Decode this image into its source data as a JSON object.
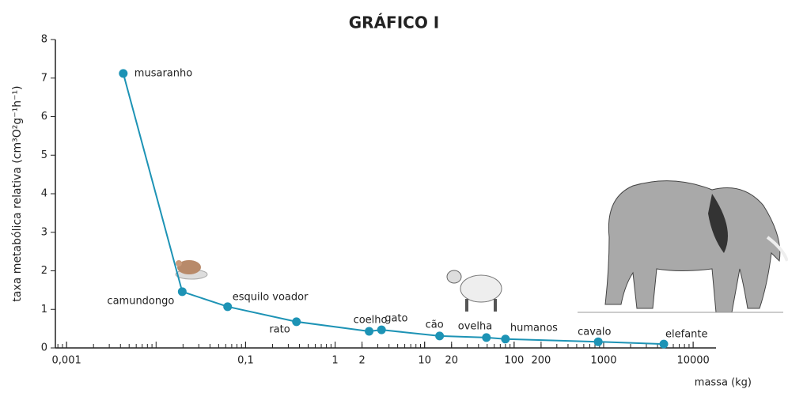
{
  "chart_data": {
    "type": "line",
    "title": "GRÁFICO I",
    "x_label": "massa (kg)",
    "y_label": "taxa metabólica relativa (cm³O²g⁻¹h⁻¹)",
    "x_scale": "log",
    "color": "#1d93b5",
    "categories": [
      "musaranho",
      "camundongo",
      "esquilo voador",
      "rato",
      "coelho",
      "gato",
      "cão",
      "ovelha",
      "humanos",
      "cavalo",
      "elefante"
    ],
    "x": [
      0.0043,
      0.0196,
      0.063,
      0.37,
      2.4,
      3.3,
      14.7,
      49,
      80,
      870,
      4700
    ],
    "values": [
      7.12,
      1.46,
      1.07,
      0.68,
      0.43,
      0.47,
      0.31,
      0.27,
      0.23,
      0.16,
      0.1
    ],
    "xlim": [
      0.00075,
      18000
    ],
    "xticks": [
      {
        "value": 0.001,
        "label": "0,001"
      },
      {
        "value": 0.1,
        "label": "0,1"
      },
      1,
      2,
      10,
      20,
      100,
      200,
      1000,
      10000
    ],
    "ylim": [
      0,
      8
    ],
    "yticks": [
      0,
      1,
      2,
      3,
      4,
      5,
      6,
      7,
      8
    ]
  }
}
